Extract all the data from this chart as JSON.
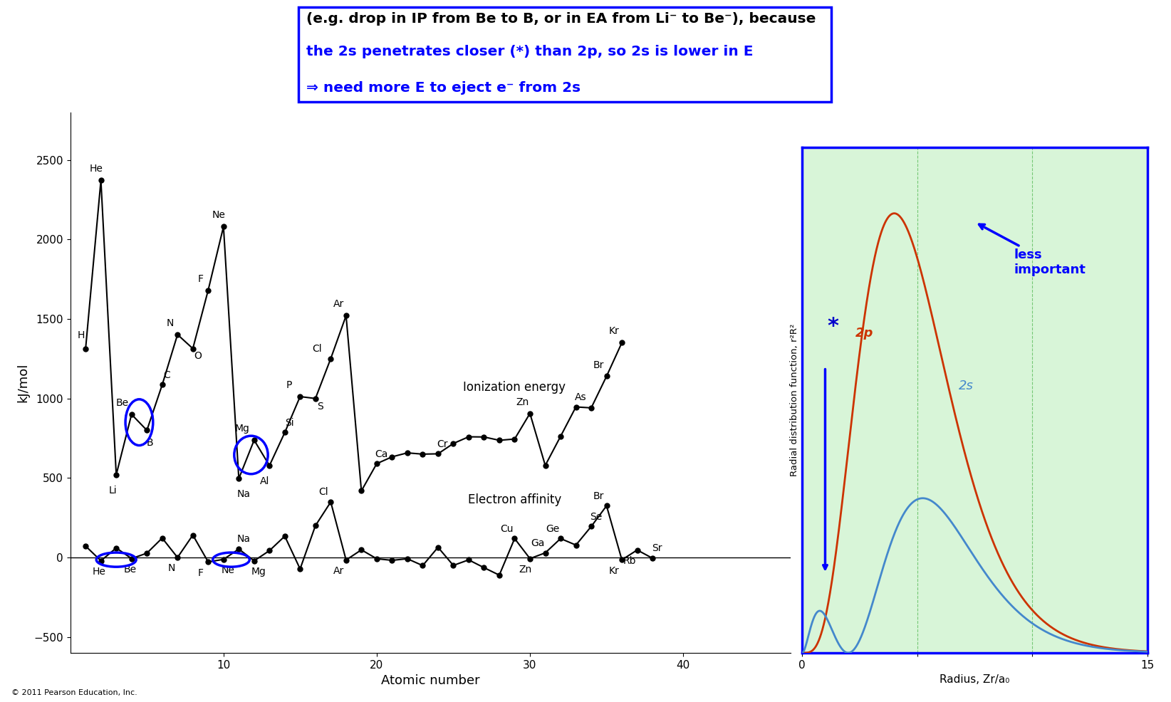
{
  "title_text": "(e.g. drop in IP from Be to B, or in EA from Li⁻ to Be⁻), because",
  "blue_line1": "the 2s penetrates closer (*) than 2p, so 2s is lower in E",
  "blue_line2": "⇒ need more E to eject e⁻ from 2s",
  "box_color": "#0000cc",
  "ip_data": {
    "Z": [
      1,
      2,
      3,
      4,
      5,
      6,
      7,
      8,
      9,
      10,
      11,
      12,
      13,
      14,
      15,
      16,
      17,
      18,
      19,
      20,
      21,
      22,
      23,
      24,
      25,
      26,
      27,
      28,
      29,
      30,
      31,
      32,
      33,
      34,
      35,
      36
    ],
    "values": [
      1312,
      2372,
      520,
      900,
      800,
      1086,
      1402,
      1314,
      1681,
      2081,
      496,
      738,
      578,
      786,
      1012,
      1000,
      1251,
      1521,
      419,
      590,
      633,
      658,
      650,
      652,
      717,
      759,
      758,
      737,
      745,
      906,
      579,
      762,
      947,
      941,
      1140,
      1351
    ]
  },
  "ea_data": {
    "Z": [
      1,
      2,
      3,
      4,
      5,
      6,
      7,
      8,
      9,
      10,
      11,
      12,
      13,
      14,
      15,
      16,
      17,
      18,
      19,
      20,
      21,
      22,
      23,
      24,
      25,
      26,
      27,
      28,
      29,
      30,
      31,
      32,
      33,
      34,
      35,
      36,
      37,
      38
    ],
    "values": [
      72,
      -21,
      60,
      -7,
      27,
      122,
      0,
      141,
      -28,
      -12,
      53,
      -21,
      43,
      134,
      -72,
      200,
      349,
      -16,
      48,
      -8,
      -18,
      -8,
      -51,
      64,
      -50,
      -15,
      -64,
      -111,
      119,
      -7,
      29,
      119,
      78,
      195,
      325,
      -15,
      47,
      -5
    ]
  },
  "ylabel": "kJ/mol",
  "xlabel": "Atomic number",
  "ylim": [
    -600,
    2800
  ],
  "xlim": [
    0,
    47
  ],
  "yticks": [
    -500,
    0,
    500,
    1000,
    1500,
    2000,
    2500
  ],
  "xticks": [
    10,
    20,
    30,
    40
  ],
  "copyright": "© 2011 Pearson Education, Inc.",
  "inset": {
    "bg_color": "#d8f5d8",
    "2p_color": "#cc3300",
    "2s_color": "#4488cc",
    "2s_small_color": "#228822",
    "ylabel": "Radial distribution function, r²R²",
    "xlabel": "Radius, Zr/a₀",
    "xlim": [
      0,
      15
    ],
    "label_2p": "2p",
    "label_2s": "2s",
    "less_important_text": "less\nimportant",
    "arrow_color": "#0000cc",
    "star_text": "*",
    "star_color": "#0000cc",
    "grid_color": "#33aa33"
  },
  "ionization_label": "Ionization energy",
  "ea_label": "Electron affinity"
}
